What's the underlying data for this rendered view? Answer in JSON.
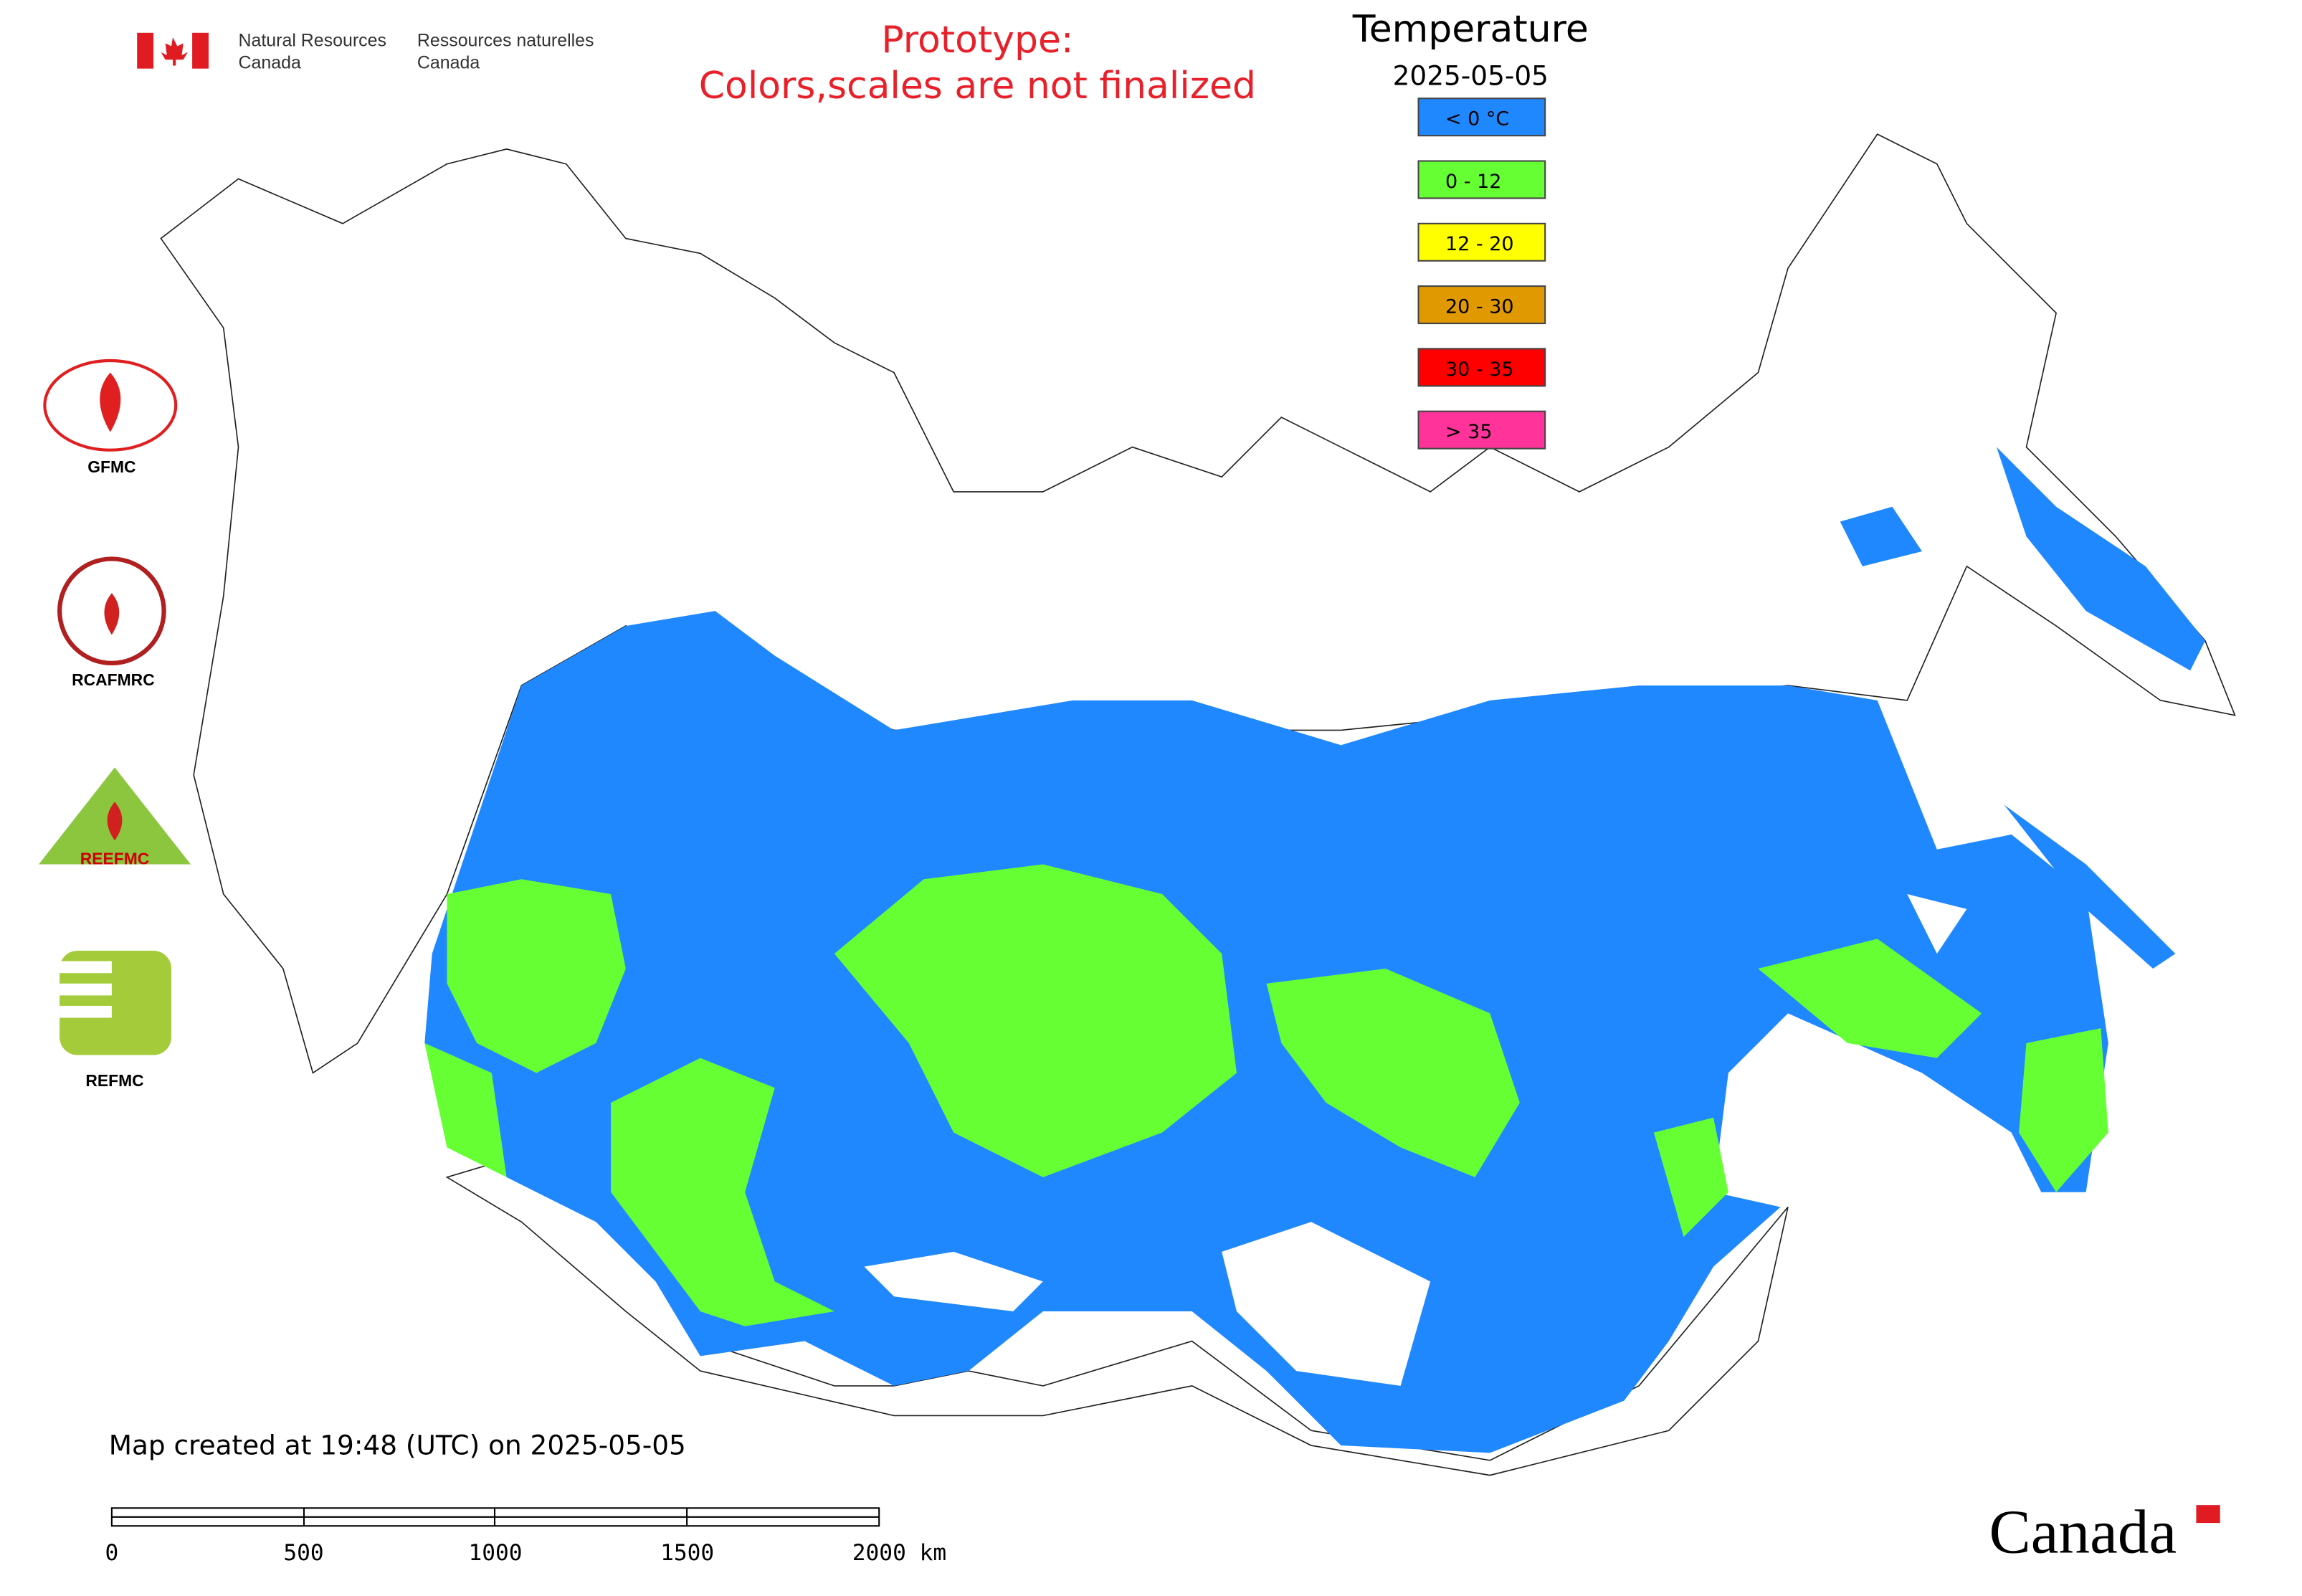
{
  "header": {
    "org_en": [
      "Natural Resources",
      "Canada"
    ],
    "org_fr": [
      "Ressources naturelles",
      "Canada"
    ],
    "notice": [
      "Prototype:",
      "Colors,scales are not finalized"
    ]
  },
  "legend": {
    "title": "Temperature",
    "date": "2025-05-05",
    "items": [
      {
        "label": "< 0 °C",
        "color": "#1f88ff"
      },
      {
        "label": "0 - 12",
        "color": "#66ff33"
      },
      {
        "label": "12 - 20",
        "color": "#ffff00"
      },
      {
        "label": "20 - 30",
        "color": "#e09a00"
      },
      {
        "label": "30 - 35",
        "color": "#ff0000"
      },
      {
        "label": "> 35",
        "color": "#ff3399"
      }
    ]
  },
  "logos": [
    "GFMC",
    "RCAFMRC",
    "REEFMC",
    "REFMC"
  ],
  "footer": {
    "created": "Map created at 19:48 (UTC) on 2025-05-05",
    "scale_labels": [
      "0",
      "500",
      "1000",
      "1500",
      "2000 km"
    ],
    "wordmark": "Canada"
  }
}
